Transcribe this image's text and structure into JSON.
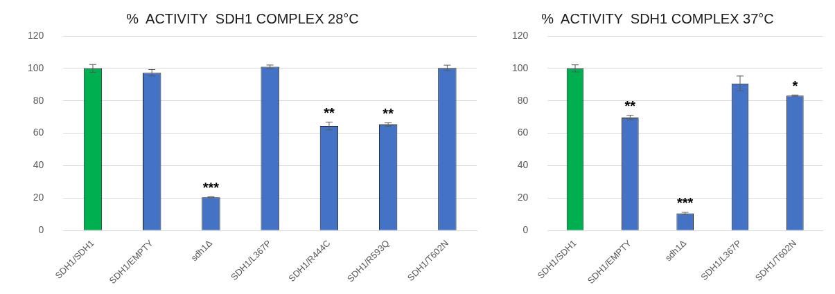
{
  "chart_data": [
    {
      "type": "bar",
      "title": "%  ACTIVITY  SDH1 COMPLEX 28°C",
      "categories": [
        "SDH1/SDH1",
        "SDH1/EMPTY",
        "sdh1Δ",
        "SDH1/L367P",
        "SDH1/R444C",
        "SDH1/R593Q",
        "SDH1/T602N"
      ],
      "values": [
        100,
        97.3,
        20.5,
        101,
        64.5,
        65.4,
        100.3
      ],
      "colors": [
        "#00b050",
        "#4472c4",
        "#4472c4",
        "#4472c4",
        "#4472c4",
        "#4472c4",
        "#4472c4"
      ],
      "errors": [
        2.4,
        2,
        0.3,
        1.1,
        2.4,
        1,
        1.7
      ],
      "ylim": [
        0,
        120
      ],
      "yticks": [
        0,
        20,
        40,
        60,
        80,
        100,
        120
      ],
      "grid": "y",
      "legend": false,
      "annotations": [
        {
          "text": "***",
          "x": "sdh1Δ",
          "y": 20.5
        },
        {
          "text": "**",
          "x": "SDH1/R444C",
          "y": 64.5
        },
        {
          "text": "**",
          "x": "SDH1/R593Q",
          "y": 65.4
        }
      ]
    },
    {
      "type": "bar",
      "title": "%  ACTIVITY  SDH1 COMPLEX 37°C",
      "categories": [
        "SDH1/SDH1",
        "SDH1/EMPTY",
        "sdh1Δ",
        "SDH1/L367P",
        "SDH1/T602N"
      ],
      "values": [
        100,
        69.7,
        10.5,
        90.7,
        83.2
      ],
      "colors": [
        "#00b050",
        "#4472c4",
        "#4472c4",
        "#4472c4",
        "#4472c4"
      ],
      "errors": [
        2.2,
        1.4,
        0.7,
        4.6,
        0.4
      ],
      "ylim": [
        0,
        120
      ],
      "yticks": [
        0,
        20,
        40,
        60,
        80,
        100,
        120
      ],
      "grid": "y",
      "legend": false,
      "annotations": [
        {
          "text": "**",
          "x": "SDH1/EMPTY",
          "y": 69.7
        },
        {
          "text": "***",
          "x": "sdh1Δ",
          "y": 10.5
        },
        {
          "text": "*",
          "x": "SDH1/T602N",
          "y": 83.2
        }
      ]
    }
  ]
}
